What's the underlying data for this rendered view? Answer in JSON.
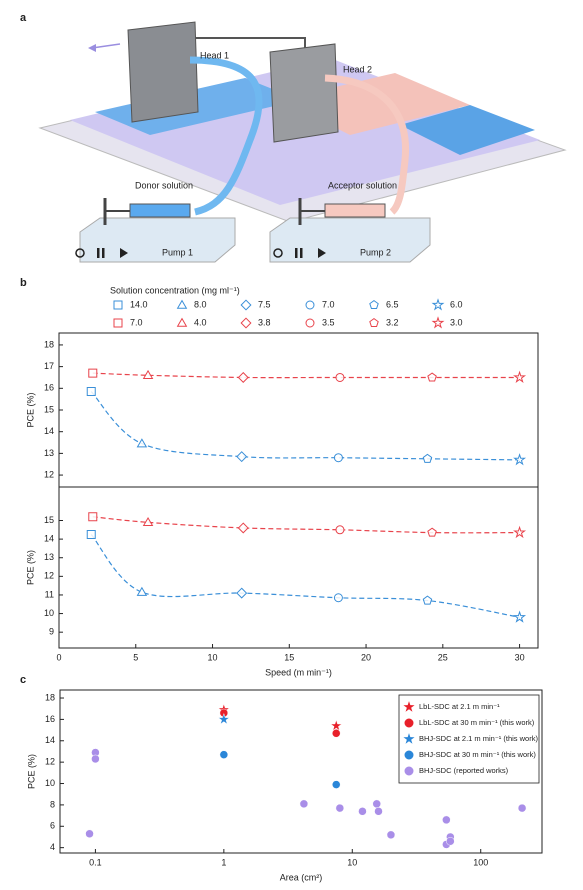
{
  "diagram": {
    "label": "a",
    "head1": "Head 1",
    "head2": "Head 2",
    "donor": "Donor solution",
    "acceptor": "Acceptor solution",
    "pump1": "Pump 1",
    "pump2": "Pump 2"
  },
  "chart_data": [
    {
      "type": "line",
      "panel_label": "b",
      "line_style": "dashed",
      "smooth": true,
      "legend": {
        "title": "Solution concentration (mg ml⁻¹)",
        "entries": [
          {
            "label": "14.0",
            "color": "#3a8fd8",
            "marker": "square"
          },
          {
            "label": "8.0",
            "color": "#3a8fd8",
            "marker": "triangle"
          },
          {
            "label": "7.5",
            "color": "#3a8fd8",
            "marker": "diamond"
          },
          {
            "label": "7.0",
            "color": "#3a8fd8",
            "marker": "circle"
          },
          {
            "label": "6.5",
            "color": "#3a8fd8",
            "marker": "pentagon"
          },
          {
            "label": "6.0",
            "color": "#3a8fd8",
            "marker": "star"
          },
          {
            "label": "7.0",
            "color": "#e8434b",
            "marker": "square"
          },
          {
            "label": "4.0",
            "color": "#e8434b",
            "marker": "triangle"
          },
          {
            "label": "3.8",
            "color": "#e8434b",
            "marker": "diamond"
          },
          {
            "label": "3.5",
            "color": "#e8434b",
            "marker": "circle"
          },
          {
            "label": "3.2",
            "color": "#e8434b",
            "marker": "pentagon"
          },
          {
            "label": "3.0",
            "color": "#e8434b",
            "marker": "star"
          }
        ]
      },
      "ylabel": "PCE (%)",
      "xlim": [
        0,
        31.2
      ],
      "ylim": [
        11.45,
        18.55
      ],
      "yticks": [
        12,
        13,
        14,
        15,
        16,
        17,
        18
      ],
      "series": [
        {
          "color": "#e8434b",
          "markers": [
            "square",
            "triangle",
            "diamond",
            "circle",
            "pentagon",
            "star"
          ],
          "x": [
            2.2,
            5.8,
            12,
            18.3,
            24.3,
            30
          ],
          "values": [
            16.7,
            16.6,
            16.5,
            16.5,
            16.5,
            16.5
          ]
        },
        {
          "color": "#3a8fd8",
          "markers": [
            "square",
            "triangle",
            "diamond",
            "circle",
            "pentagon",
            "star"
          ],
          "x": [
            2.1,
            5.4,
            11.9,
            18.2,
            24,
            30
          ],
          "values": [
            15.85,
            13.45,
            12.85,
            12.8,
            12.75,
            12.7
          ]
        }
      ]
    },
    {
      "type": "line",
      "line_style": "dashed",
      "smooth": true,
      "ylabel": "PCE (%)",
      "xlabel": "Speed (m min⁻¹)",
      "xlim": [
        0,
        31.2
      ],
      "ylim": [
        8.15,
        16.8
      ],
      "yticks": [
        9,
        10,
        11,
        12,
        13,
        14,
        15
      ],
      "xticks": [
        0,
        5,
        10,
        15,
        20,
        25,
        30
      ],
      "series": [
        {
          "color": "#e8434b",
          "markers": [
            "square",
            "triangle",
            "diamond",
            "circle",
            "pentagon",
            "star"
          ],
          "x": [
            2.2,
            5.8,
            12,
            18.3,
            24.3,
            30
          ],
          "values": [
            15.2,
            14.9,
            14.6,
            14.5,
            14.35,
            14.35
          ]
        },
        {
          "color": "#3a8fd8",
          "markers": [
            "square",
            "triangle",
            "diamond",
            "circle",
            "pentagon",
            "star"
          ],
          "x": [
            2.1,
            5.4,
            11.9,
            18.2,
            24,
            30
          ],
          "values": [
            14.25,
            11.15,
            11.1,
            10.85,
            10.7,
            9.8
          ]
        }
      ]
    },
    {
      "type": "scatter",
      "panel_label": "c",
      "log_x": true,
      "legend_corner": "upper right",
      "xlabel": "Area (cm²)",
      "ylabel": "PCE (%)",
      "xlim": [
        0.053,
        300
      ],
      "ylim": [
        3.5,
        18.75
      ],
      "xticks": [
        0.1,
        1,
        10,
        100
      ],
      "yticks": [
        4,
        6,
        8,
        10,
        12,
        14,
        16,
        18
      ],
      "series": [
        {
          "name": "LbL-SDC at 2.1 m min⁻¹",
          "color": "#e8202a",
          "marker": "star",
          "x": [
            1,
            7.5
          ],
          "values": [
            16.9,
            15.4
          ]
        },
        {
          "name": "LbL-SDC at 30 m min⁻¹ (this work)",
          "color": "#e8202a",
          "marker": "sphere",
          "x": [
            1,
            7.5
          ],
          "values": [
            16.6,
            14.7
          ]
        },
        {
          "name": "BHJ-SDC at 2.1 m min⁻¹ (this work)",
          "color": "#2a86d8",
          "marker": "star",
          "x": [
            1
          ],
          "values": [
            16.0
          ]
        },
        {
          "name": "BHJ-SDC at 30 m min⁻¹ (this work)",
          "color": "#2a86d8",
          "marker": "sphere",
          "x": [
            1,
            7.5
          ],
          "values": [
            12.7,
            9.9
          ]
        },
        {
          "name": "BHJ-SDC (reported works)",
          "color": "#a98ee8",
          "marker": "sphere",
          "x": [
            0.09,
            0.1,
            0.1,
            4.2,
            8,
            12,
            15.5,
            16,
            20,
            54,
            54,
            58,
            58,
            210
          ],
          "values": [
            5.3,
            12.9,
            12.3,
            8.1,
            7.7,
            7.4,
            8.1,
            7.4,
            5.2,
            4.3,
            6.6,
            5.0,
            4.6,
            7.7
          ]
        }
      ]
    }
  ]
}
